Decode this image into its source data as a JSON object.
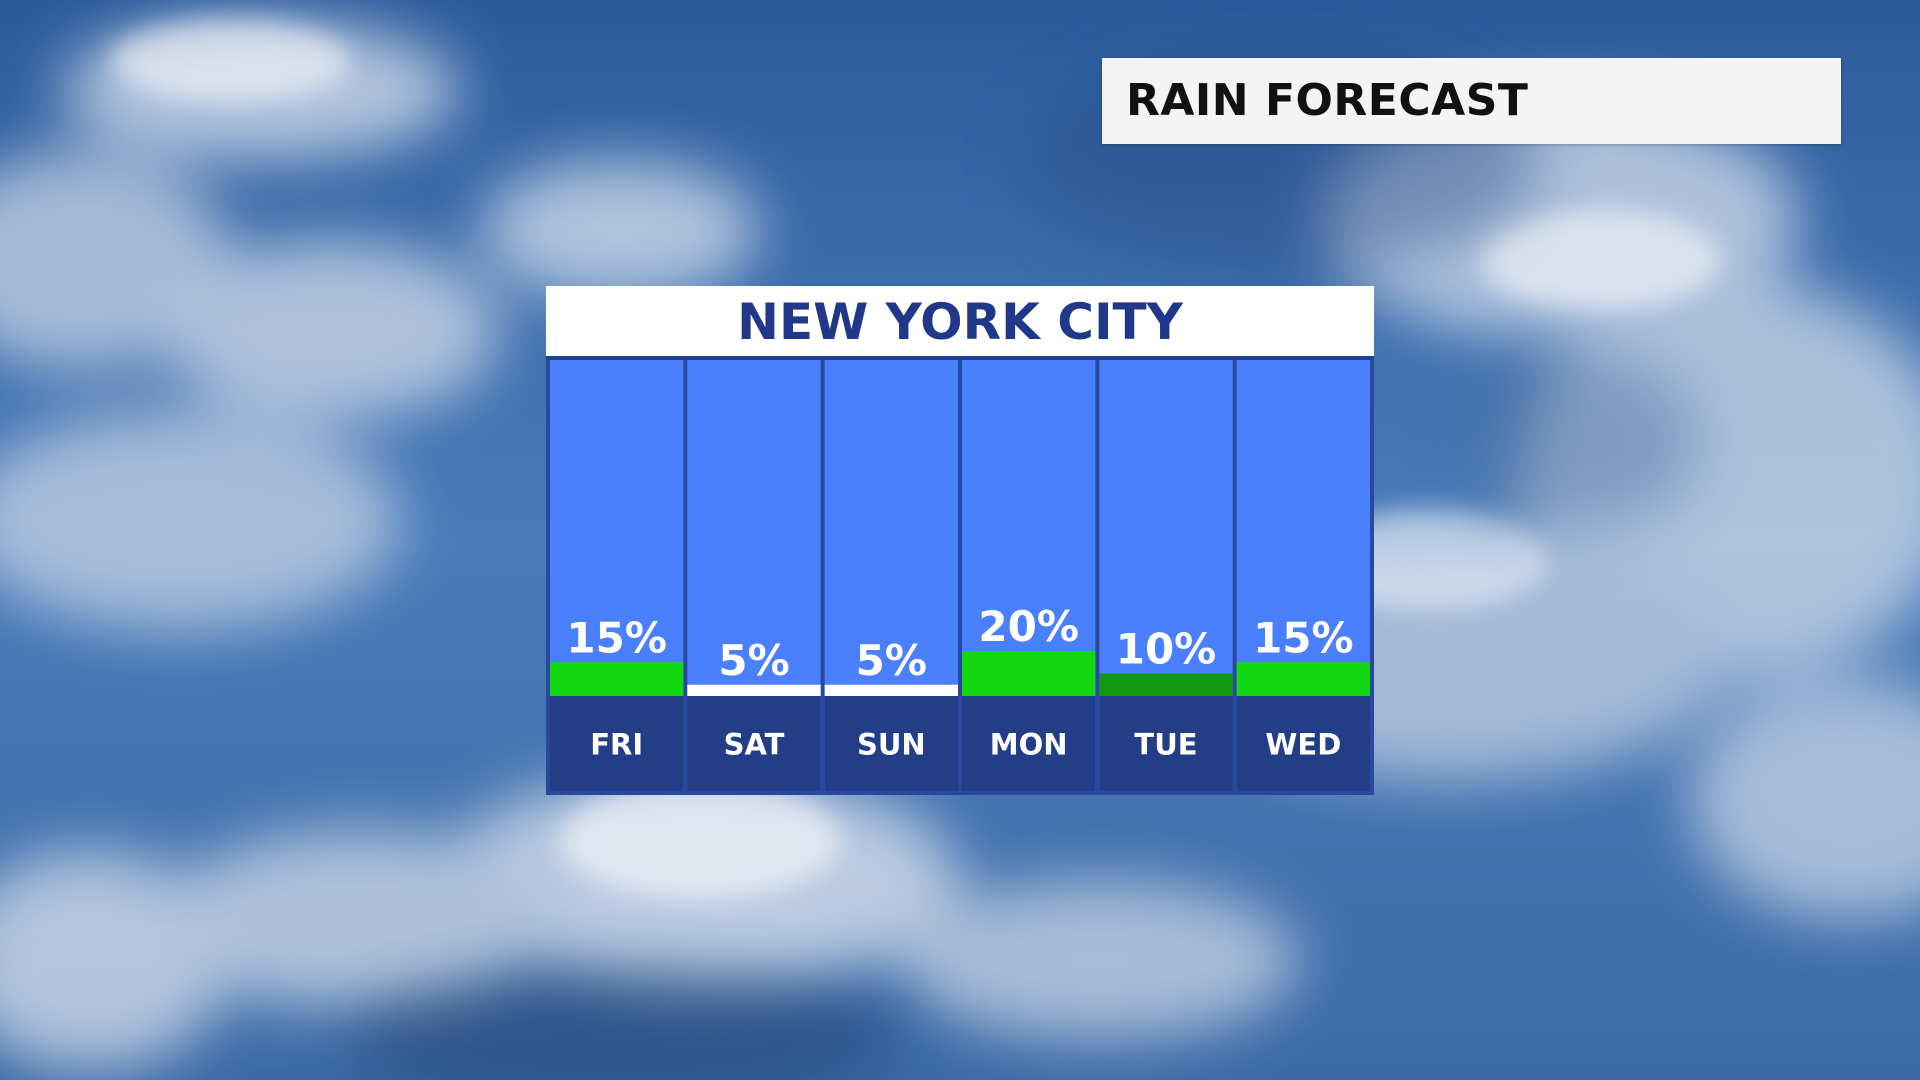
{
  "header": {
    "title": "RAIN FORECAST"
  },
  "colors": {
    "column_bg": "#4a7ffd",
    "column_border": "#2a48a0",
    "day_bar_bg": "#233e86",
    "rain_bar": "#12d812",
    "rain_bar_dark": "#119a11",
    "low_bar": "#ffffff",
    "title_text": "#21388a",
    "header_text": "#111111"
  },
  "chart_data": {
    "type": "bar",
    "title": "NEW YORK CITY",
    "unit": "%",
    "categories": [
      "FRI",
      "SAT",
      "SUN",
      "MON",
      "TUE",
      "WED"
    ],
    "values": [
      15,
      5,
      5,
      20,
      10,
      15
    ],
    "labels": [
      "15%",
      "5%",
      "5%",
      "20%",
      "10%",
      "15%"
    ],
    "bar_colors": [
      "#12d812",
      "#ffffff",
      "#ffffff",
      "#12d812",
      "#119a11",
      "#12d812"
    ],
    "ylim": [
      0,
      100
    ]
  }
}
